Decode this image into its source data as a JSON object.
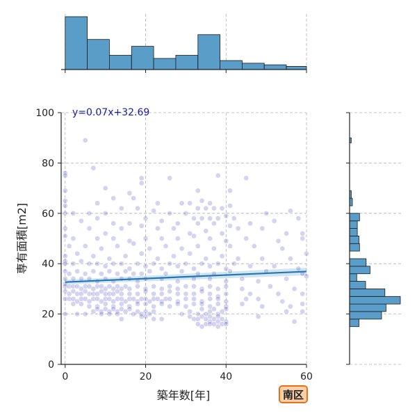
{
  "chart_data": {
    "type": "scatter",
    "xlabel": "築年数[年]",
    "ylabel": "専有面積[m2]",
    "xlim": [
      -1,
      60
    ],
    "ylim": [
      0,
      100
    ],
    "xticks": [
      0,
      20,
      40,
      60
    ],
    "yticks": [
      0,
      20,
      40,
      60,
      80,
      100
    ],
    "grid": true,
    "point_color": "#2a2ab8",
    "regression": {
      "label": "y=0.07x+32.69",
      "slope": 0.07,
      "intercept": 32.69,
      "ci_band": 1.5,
      "color": "#1f77b4"
    },
    "points": [
      [
        5,
        89
      ],
      [
        7,
        78
      ],
      [
        0,
        76
      ],
      [
        0,
        75
      ],
      [
        19,
        74
      ],
      [
        26,
        74
      ],
      [
        38,
        75
      ],
      [
        45,
        74
      ],
      [
        19,
        72
      ],
      [
        10,
        70
      ],
      [
        16,
        68
      ],
      [
        33,
        69
      ],
      [
        41,
        69
      ],
      [
        0,
        69
      ],
      [
        17,
        66
      ],
      [
        12,
        66
      ],
      [
        0,
        65
      ],
      [
        0,
        63
      ],
      [
        8,
        64
      ],
      [
        23,
        64
      ],
      [
        29,
        64
      ],
      [
        31,
        64
      ],
      [
        33,
        62
      ],
      [
        35,
        62
      ],
      [
        37,
        62
      ],
      [
        39,
        62
      ],
      [
        41,
        63
      ],
      [
        34,
        65
      ],
      [
        36,
        64
      ],
      [
        0,
        60
      ],
      [
        2,
        60
      ],
      [
        6,
        60
      ],
      [
        10,
        60
      ],
      [
        14,
        62
      ],
      [
        18,
        62
      ],
      [
        22,
        61
      ],
      [
        26,
        60
      ],
      [
        30,
        60
      ],
      [
        32,
        58
      ],
      [
        34,
        58
      ],
      [
        36,
        58
      ],
      [
        38,
        58
      ],
      [
        40,
        59
      ],
      [
        42,
        58
      ],
      [
        50,
        60
      ],
      [
        56,
        61
      ],
      [
        4,
        57
      ],
      [
        8,
        58
      ],
      [
        12,
        56
      ],
      [
        16,
        56
      ],
      [
        20,
        58
      ],
      [
        24,
        57
      ],
      [
        28,
        56
      ],
      [
        33,
        56
      ],
      [
        37,
        56
      ],
      [
        41,
        55
      ],
      [
        46,
        56
      ],
      [
        52,
        57
      ],
      [
        58,
        58
      ],
      [
        0,
        54
      ],
      [
        6,
        54
      ],
      [
        10,
        52
      ],
      [
        14,
        54
      ],
      [
        19,
        55
      ],
      [
        23,
        54
      ],
      [
        27,
        54
      ],
      [
        31,
        52
      ],
      [
        35,
        53
      ],
      [
        39,
        52
      ],
      [
        43,
        54
      ],
      [
        49,
        54
      ],
      [
        55,
        52
      ],
      [
        59,
        52
      ],
      [
        0,
        51
      ],
      [
        2,
        50
      ],
      [
        8,
        50
      ],
      [
        12,
        50
      ],
      [
        16,
        49
      ],
      [
        20,
        50
      ],
      [
        24,
        50
      ],
      [
        28,
        50
      ],
      [
        32,
        51
      ],
      [
        36,
        50
      ],
      [
        40,
        49
      ],
      [
        45,
        50
      ],
      [
        53,
        49
      ],
      [
        59,
        50
      ],
      [
        1,
        47
      ],
      [
        5,
        47
      ],
      [
        9,
        46
      ],
      [
        13,
        47
      ],
      [
        17,
        48
      ],
      [
        21,
        46
      ],
      [
        25,
        47
      ],
      [
        29,
        46
      ],
      [
        33,
        47
      ],
      [
        37,
        46
      ],
      [
        41,
        47
      ],
      [
        47,
        47
      ],
      [
        54,
        46
      ],
      [
        60,
        44
      ],
      [
        0,
        43
      ],
      [
        3,
        44
      ],
      [
        7,
        43
      ],
      [
        11,
        42
      ],
      [
        15,
        43
      ],
      [
        19,
        44
      ],
      [
        23,
        42
      ],
      [
        27,
        43
      ],
      [
        31,
        44
      ],
      [
        35,
        42
      ],
      [
        39,
        43
      ],
      [
        43,
        42
      ],
      [
        49,
        42
      ],
      [
        56,
        42
      ],
      [
        0,
        41
      ],
      [
        0,
        40
      ],
      [
        2,
        40
      ],
      [
        4,
        41
      ],
      [
        6,
        40
      ],
      [
        8,
        40
      ],
      [
        10,
        39
      ],
      [
        12,
        40
      ],
      [
        14,
        40
      ],
      [
        16,
        38
      ],
      [
        18,
        40
      ],
      [
        20,
        39
      ],
      [
        22,
        40
      ],
      [
        24,
        38
      ],
      [
        26,
        40
      ],
      [
        28,
        39
      ],
      [
        30,
        40
      ],
      [
        32,
        38
      ],
      [
        34,
        40
      ],
      [
        36,
        39
      ],
      [
        38,
        40
      ],
      [
        40,
        38
      ],
      [
        42,
        40
      ],
      [
        46,
        39
      ],
      [
        52,
        39
      ],
      [
        58,
        38
      ],
      [
        0,
        37
      ],
      [
        1,
        36
      ],
      [
        3,
        37
      ],
      [
        5,
        36
      ],
      [
        7,
        37
      ],
      [
        9,
        36
      ],
      [
        11,
        37
      ],
      [
        13,
        36
      ],
      [
        15,
        37
      ],
      [
        17,
        36
      ],
      [
        19,
        36
      ],
      [
        21,
        37
      ],
      [
        25,
        36
      ],
      [
        29,
        37
      ],
      [
        33,
        36
      ],
      [
        37,
        36
      ],
      [
        41,
        37
      ],
      [
        50,
        37
      ],
      [
        59,
        36
      ],
      [
        0,
        34
      ],
      [
        2,
        34
      ],
      [
        4,
        34
      ],
      [
        6,
        34
      ],
      [
        8,
        33
      ],
      [
        10,
        34
      ],
      [
        12,
        33
      ],
      [
        14,
        34
      ],
      [
        16,
        34
      ],
      [
        18,
        33
      ],
      [
        20,
        34
      ],
      [
        24,
        34
      ],
      [
        28,
        33
      ],
      [
        32,
        34
      ],
      [
        36,
        34
      ],
      [
        40,
        33
      ],
      [
        44,
        34
      ],
      [
        48,
        33
      ],
      [
        55,
        34
      ],
      [
        60,
        35
      ],
      [
        0,
        32
      ],
      [
        0,
        31
      ],
      [
        1,
        31
      ],
      [
        2,
        31
      ],
      [
        3,
        31
      ],
      [
        4,
        30
      ],
      [
        5,
        31
      ],
      [
        6,
        31
      ],
      [
        7,
        30
      ],
      [
        8,
        31
      ],
      [
        9,
        31
      ],
      [
        10,
        30
      ],
      [
        11,
        31
      ],
      [
        12,
        30
      ],
      [
        13,
        31
      ],
      [
        14,
        30
      ],
      [
        15,
        31
      ],
      [
        16,
        30
      ],
      [
        18,
        31
      ],
      [
        20,
        30
      ],
      [
        22,
        31
      ],
      [
        24,
        30
      ],
      [
        26,
        31
      ],
      [
        28,
        30
      ],
      [
        30,
        31
      ],
      [
        32,
        31
      ],
      [
        34,
        30
      ],
      [
        36,
        31
      ],
      [
        38,
        30
      ],
      [
        40,
        31
      ],
      [
        44,
        30
      ],
      [
        51,
        31
      ],
      [
        57,
        30
      ],
      [
        0,
        29
      ],
      [
        1,
        28
      ],
      [
        2,
        29
      ],
      [
        3,
        28
      ],
      [
        4,
        28
      ],
      [
        5,
        29
      ],
      [
        6,
        28
      ],
      [
        7,
        28
      ],
      [
        8,
        28
      ],
      [
        9,
        29
      ],
      [
        10,
        28
      ],
      [
        11,
        28
      ],
      [
        12,
        28
      ],
      [
        13,
        29
      ],
      [
        14,
        28
      ],
      [
        16,
        28
      ],
      [
        18,
        28
      ],
      [
        20,
        29
      ],
      [
        22,
        28
      ],
      [
        24,
        28
      ],
      [
        26,
        29
      ],
      [
        28,
        28
      ],
      [
        30,
        28
      ],
      [
        32,
        28
      ],
      [
        34,
        29
      ],
      [
        36,
        28
      ],
      [
        38,
        27
      ],
      [
        40,
        28
      ],
      [
        46,
        28
      ],
      [
        53,
        28
      ],
      [
        59,
        28
      ],
      [
        0,
        26
      ],
      [
        1,
        26
      ],
      [
        2,
        26
      ],
      [
        3,
        25
      ],
      [
        4,
        26
      ],
      [
        5,
        26
      ],
      [
        6,
        25
      ],
      [
        7,
        26
      ],
      [
        8,
        26
      ],
      [
        9,
        25
      ],
      [
        10,
        26
      ],
      [
        11,
        26
      ],
      [
        12,
        25
      ],
      [
        13,
        26
      ],
      [
        14,
        26
      ],
      [
        15,
        25
      ],
      [
        16,
        26
      ],
      [
        17,
        26
      ],
      [
        18,
        25
      ],
      [
        19,
        26
      ],
      [
        20,
        26
      ],
      [
        21,
        25
      ],
      [
        22,
        26
      ],
      [
        23,
        26
      ],
      [
        24,
        25
      ],
      [
        25,
        26
      ],
      [
        26,
        26
      ],
      [
        28,
        25
      ],
      [
        30,
        26
      ],
      [
        32,
        26
      ],
      [
        34,
        25
      ],
      [
        36,
        26
      ],
      [
        38,
        26
      ],
      [
        40,
        25
      ],
      [
        45,
        26
      ],
      [
        48,
        26
      ],
      [
        54,
        25
      ],
      [
        59,
        24
      ],
      [
        2,
        24
      ],
      [
        4,
        24
      ],
      [
        6,
        23
      ],
      [
        8,
        23
      ],
      [
        10,
        24
      ],
      [
        12,
        23
      ],
      [
        14,
        24
      ],
      [
        16,
        23
      ],
      [
        18,
        24
      ],
      [
        20,
        24
      ],
      [
        22,
        23
      ],
      [
        24,
        24
      ],
      [
        26,
        23
      ],
      [
        28,
        24
      ],
      [
        30,
        23
      ],
      [
        32,
        24
      ],
      [
        34,
        24
      ],
      [
        36,
        23
      ],
      [
        38,
        24
      ],
      [
        40,
        23
      ],
      [
        44,
        24
      ],
      [
        49,
        23
      ],
      [
        56,
        23
      ],
      [
        8,
        22
      ],
      [
        9,
        21
      ],
      [
        10,
        22
      ],
      [
        11,
        21
      ],
      [
        12,
        22
      ],
      [
        13,
        21
      ],
      [
        14,
        22
      ],
      [
        15,
        21
      ],
      [
        16,
        22
      ],
      [
        18,
        21
      ],
      [
        19,
        20
      ],
      [
        20,
        21
      ],
      [
        21,
        20
      ],
      [
        22,
        21
      ],
      [
        0,
        20
      ],
      [
        3,
        20
      ],
      [
        5,
        20
      ],
      [
        7,
        21
      ],
      [
        9,
        20
      ],
      [
        11,
        20
      ],
      [
        13,
        20
      ],
      [
        17,
        20
      ],
      [
        19,
        19
      ],
      [
        20,
        19
      ],
      [
        29,
        20
      ],
      [
        31,
        21
      ],
      [
        33,
        20
      ],
      [
        34,
        22
      ],
      [
        35,
        20
      ],
      [
        36,
        21
      ],
      [
        37,
        22
      ],
      [
        38,
        20
      ],
      [
        39,
        21
      ],
      [
        40,
        22
      ],
      [
        48,
        19
      ],
      [
        55,
        21
      ],
      [
        59,
        21
      ],
      [
        31,
        19
      ],
      [
        32,
        18
      ],
      [
        33,
        18
      ],
      [
        34,
        19
      ],
      [
        35,
        18
      ],
      [
        36,
        17
      ],
      [
        37,
        18
      ],
      [
        38,
        17
      ],
      [
        39,
        18
      ],
      [
        40,
        17
      ],
      [
        14,
        18
      ],
      [
        22,
        18
      ],
      [
        24,
        18
      ],
      [
        33,
        16
      ],
      [
        34,
        15
      ],
      [
        35,
        16
      ],
      [
        36,
        16
      ],
      [
        37,
        16
      ],
      [
        38,
        15
      ],
      [
        39,
        16
      ],
      [
        40,
        16
      ],
      [
        36,
        19
      ],
      [
        38,
        19
      ],
      [
        57,
        17
      ]
    ],
    "hist_x": {
      "edges": [
        0,
        5.5,
        11,
        16.5,
        22,
        27.5,
        33,
        38.5,
        44,
        49.5,
        55,
        60
      ],
      "counts": [
        100,
        57,
        27,
        44,
        21,
        27,
        66,
        17,
        12,
        9,
        6
      ]
    },
    "hist_y": {
      "edges": [
        15,
        18,
        21,
        24,
        27,
        30,
        33,
        36,
        39,
        42,
        45,
        48,
        51,
        54,
        57,
        60,
        63,
        66,
        69,
        72,
        75,
        78,
        81,
        84,
        87,
        90
      ],
      "counts": [
        17,
        58,
        66,
        92,
        64,
        29,
        13,
        37,
        30,
        0,
        18,
        17,
        14,
        14,
        18,
        0,
        5,
        3,
        0,
        0,
        0,
        0,
        0,
        0,
        0
      ],
      "extra": [
        {
          "y": 89,
          "count": 3
        }
      ]
    },
    "hist_color": "#5a9dc8",
    "badge": "南区"
  }
}
